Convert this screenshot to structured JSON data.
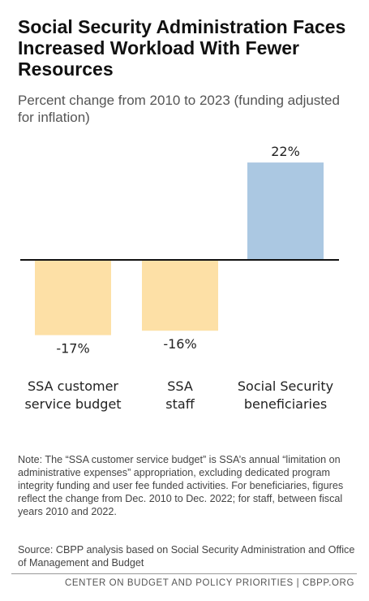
{
  "title": "Social Security Administration Faces Increased Workload With Fewer Resources",
  "subtitle": "Percent change from 2010 to 2023 (funding adjusted for inflation)",
  "chart_data": {
    "type": "bar",
    "categories": [
      [
        "SSA customer",
        "service budget"
      ],
      [
        "SSA",
        "staff"
      ],
      [
        "Social Security",
        "beneficiaries"
      ]
    ],
    "values": [
      -17,
      -16,
      22
    ],
    "value_labels": [
      "-17%",
      "-16%",
      "22%"
    ],
    "ylim": [
      -17,
      22
    ],
    "colors": {
      "negative": "#fde0a6",
      "positive": "#abc8e2",
      "axis": "#111111"
    },
    "grid": false,
    "legend": "none"
  },
  "note": "Note: The “SSA customer service budget” is SSA’s annual “limitation on administrative expenses” appropriation, excluding dedicated program integrity funding and user fee funded activities. For beneficiaries, figures reflect the change from Dec. 2010 to Dec. 2022; for staff, between fiscal years 2010 and 2022.",
  "source": "Source: CBPP analysis based on Social Security Administration and Office of Management and Budget",
  "footer": "CENTER ON BUDGET AND POLICY PRIORITIES | CBPP.ORG"
}
